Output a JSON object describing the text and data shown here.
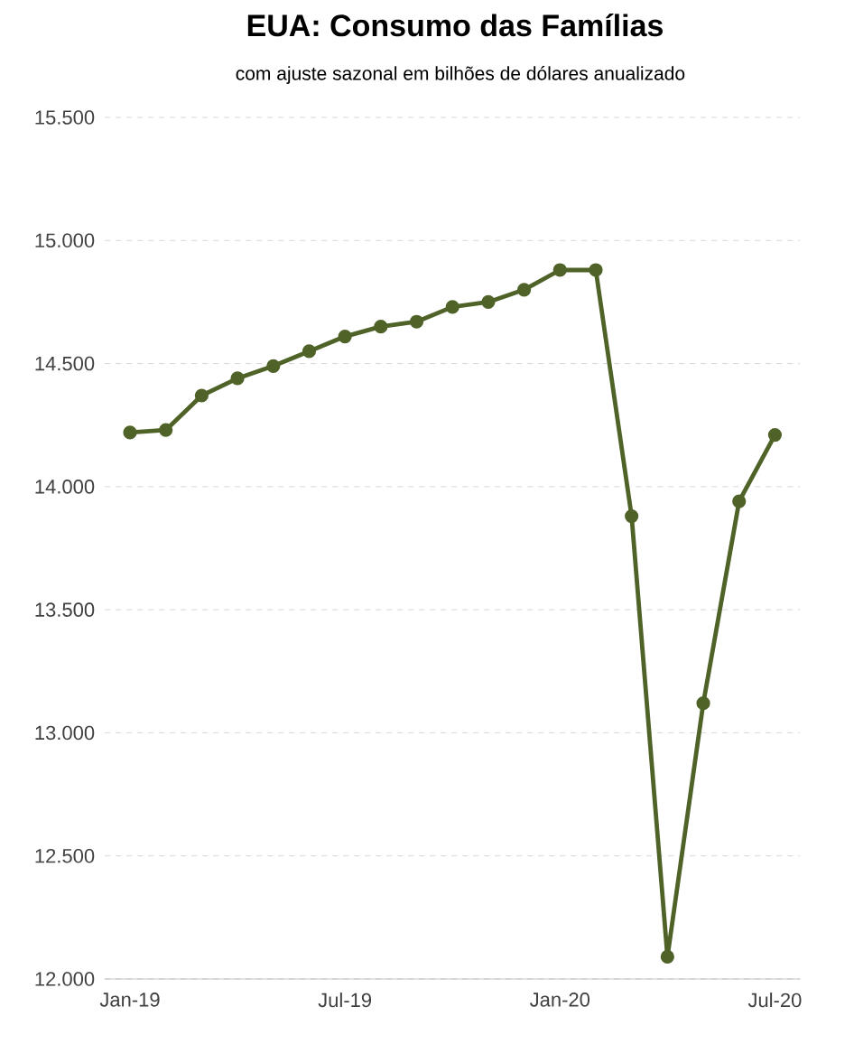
{
  "chart_data": {
    "type": "line",
    "title": "EUA: Consumo das Famílias",
    "subtitle": "com ajuste sazonal em bilhões de dólares anualizado",
    "categories": [
      "Jan-19",
      null,
      null,
      null,
      null,
      null,
      "Jul-19",
      null,
      null,
      null,
      null,
      null,
      "Jan-20",
      null,
      null,
      null,
      null,
      null,
      "Jul-20"
    ],
    "series": [
      {
        "color": "#4f6228",
        "values": [
          14220,
          14230,
          14370,
          14440,
          14490,
          14550,
          14610,
          14650,
          14670,
          14730,
          14750,
          14800,
          14880,
          14880,
          13880,
          12090,
          13120,
          13940,
          14210
        ]
      }
    ],
    "ylim": [
      12000,
      15500
    ],
    "yticks": [
      {
        "value": 12000,
        "label": "12.000"
      },
      {
        "value": 12500,
        "label": "12.500"
      },
      {
        "value": 13000,
        "label": "13.000"
      },
      {
        "value": 13500,
        "label": "13.500"
      },
      {
        "value": 14000,
        "label": "14.000"
      },
      {
        "value": 14500,
        "label": "14.500"
      },
      {
        "value": 15000,
        "label": "15.000"
      },
      {
        "value": 15500,
        "label": "15.500"
      }
    ],
    "grid": "y",
    "marker": "circle",
    "line_style": "solid"
  }
}
